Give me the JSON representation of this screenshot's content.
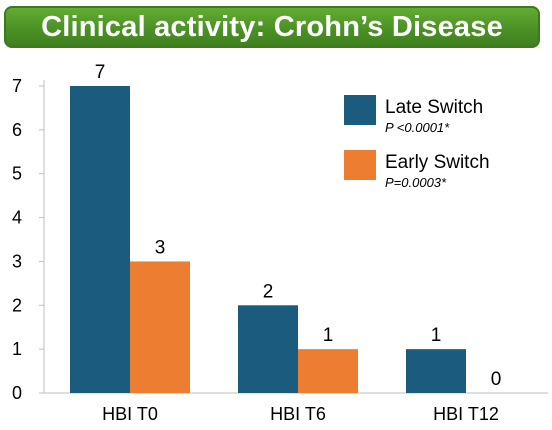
{
  "chart_data": {
    "type": "bar",
    "title": "Clinical activity: Crohn’s Disease",
    "categories": [
      "HBI T0",
      "HBI T6",
      "HBI T12"
    ],
    "series": [
      {
        "name": "Late Switch",
        "note": "P <0.0001*",
        "color": "#1b5c7e",
        "values": [
          7,
          2,
          1
        ]
      },
      {
        "name": "Early Switch",
        "note": "P=0.0003*",
        "color": "#ed7d31",
        "values": [
          3,
          1,
          0
        ]
      }
    ],
    "ylim": [
      0,
      7
    ],
    "yticks": [
      0,
      1,
      2,
      3,
      4,
      5,
      6,
      7
    ],
    "xlabel": "",
    "ylabel": "",
    "grid": false,
    "legend_position": "top-right"
  }
}
